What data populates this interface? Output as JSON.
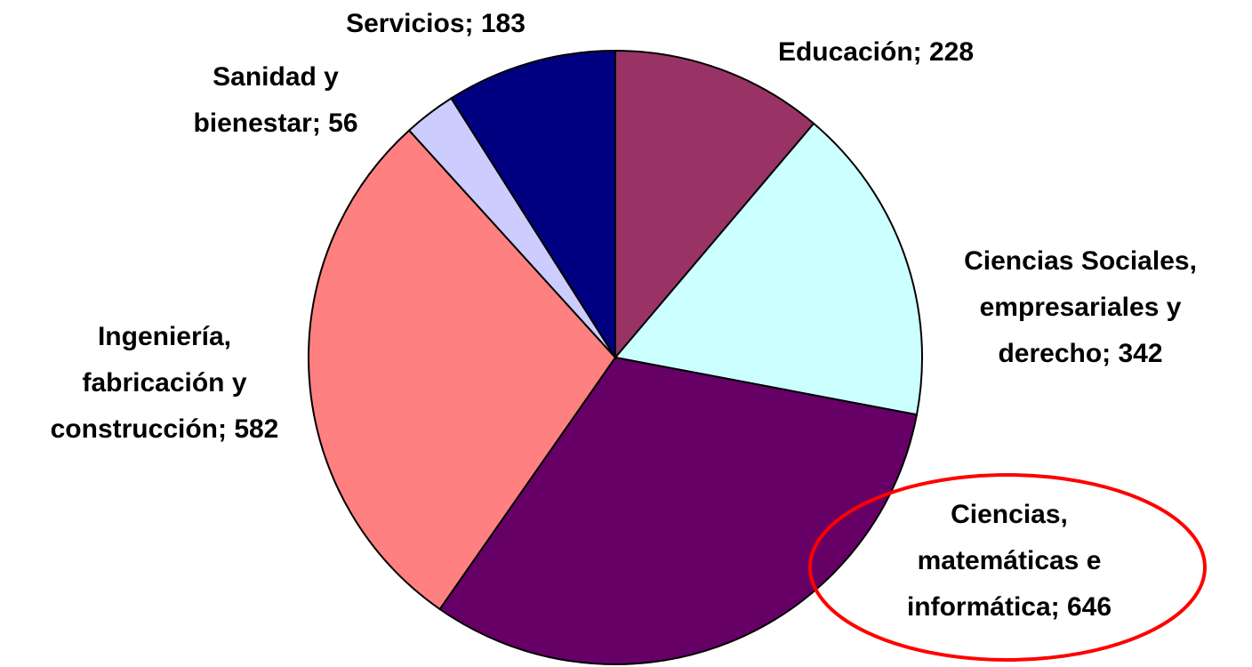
{
  "chart_data": {
    "type": "pie",
    "values": [
      228,
      342,
      646,
      582,
      56,
      183
    ],
    "value_labels": [
      [
        "Educación; 228"
      ],
      [
        "Ciencias Sociales,",
        "empresariales y",
        "derecho; 342"
      ],
      [
        "Ciencias,",
        "matemáticas e",
        "informática; 646"
      ],
      [
        "Ingeniería,",
        "fabricación y",
        "construcción; 582"
      ],
      [
        "Sanidad y",
        "bienestar; 56"
      ],
      [
        "Servicios; 183"
      ]
    ],
    "colors": [
      "#993366",
      "#ccffff",
      "#660066",
      "#ff8080",
      "#ccccff",
      "#000080"
    ]
  }
}
